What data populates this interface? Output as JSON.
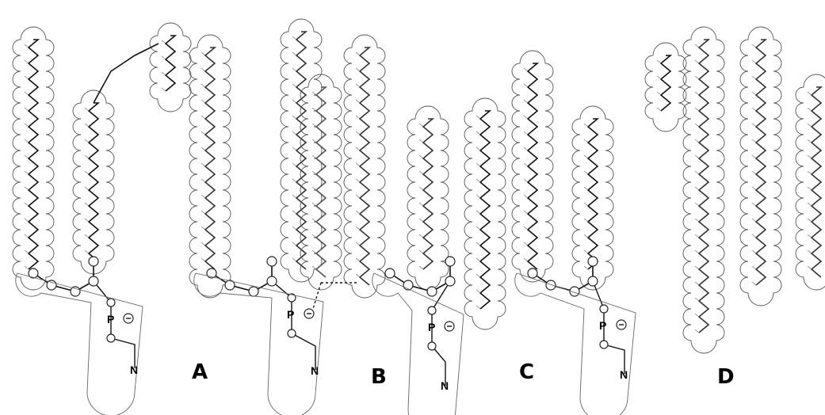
{
  "panels": [
    {
      "label": "A",
      "atoms": [
        "P",
        "N"
      ]
    },
    {
      "label": "B",
      "atoms": [
        "P",
        "N"
      ]
    },
    {
      "label": "C",
      "atoms": [
        "P",
        "N"
      ]
    },
    {
      "label": "D"
    }
  ]
}
